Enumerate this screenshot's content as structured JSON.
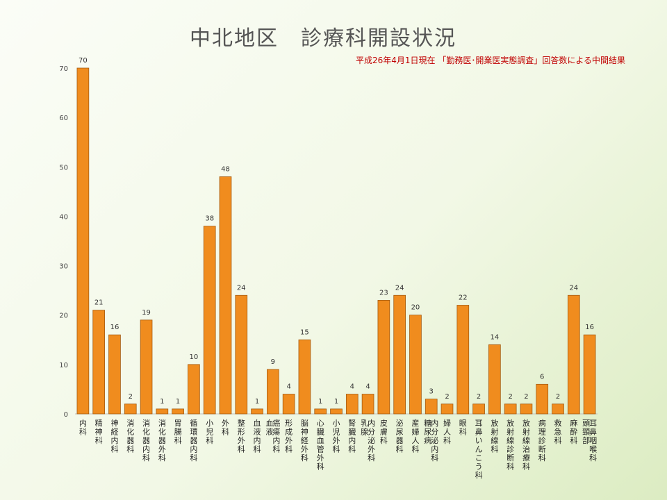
{
  "chart_data": {
    "type": "bar",
    "title": "中北地区　診療科開設状況",
    "subtitle": "平成26年4月1日現在 「勤務医･開業医実態調査」回答数による中間結果",
    "categories": [
      "内科",
      "精神科",
      "神経内科",
      "消化器科",
      "消化器内科",
      "消化器外科",
      "胃腸科",
      "循環器内科",
      "小児科",
      "外科",
      "整形外科",
      "血液内科",
      "血液 癌瘍内科",
      "形成外科",
      "脳神経外科",
      "心臓血管外科",
      "小児外科",
      "腎臓内科",
      "乳腺 内分泌外科",
      "皮膚科",
      "泌尿器科",
      "産婦人科",
      "糖尿病 内分泌内科",
      "婦人科",
      "眼科",
      "耳鼻いんこう科",
      "放射線科",
      "放射線診断科",
      "放射線治療科",
      "病理診断科",
      "救急科",
      "麻酔科",
      "頭頸部 耳鼻咽喉科"
    ],
    "values": [
      70,
      21,
      16,
      2,
      19,
      1,
      1,
      10,
      38,
      48,
      24,
      1,
      9,
      4,
      15,
      1,
      1,
      4,
      4,
      23,
      24,
      20,
      3,
      2,
      22,
      2,
      14,
      2,
      2,
      6,
      2,
      24,
      16
    ],
    "ylim": [
      0,
      70
    ],
    "yticks": [
      0,
      10,
      20,
      30,
      40,
      50,
      60,
      70
    ],
    "xlabel": "",
    "ylabel": "",
    "bar_color": "#f08c1e",
    "bar_edge_color": "#a35a10",
    "grid": false,
    "legend": "none"
  }
}
